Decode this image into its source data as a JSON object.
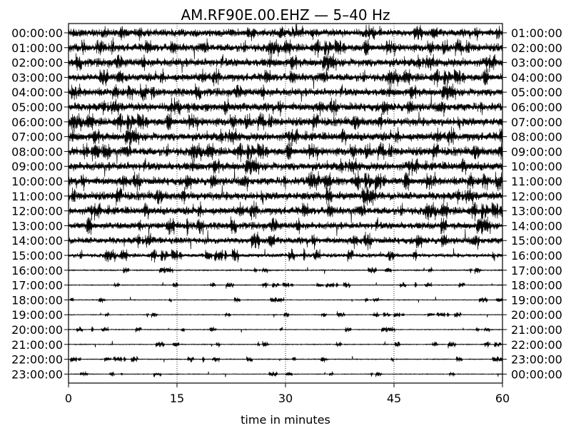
{
  "chart_data": {
    "type": "line",
    "title": "AM.RF90E.00.EHZ — 5–40 Hz",
    "xlabel": "time in minutes",
    "xlim": [
      0,
      60
    ],
    "x_ticks": [
      "0",
      "15",
      "30",
      "45",
      "60"
    ],
    "x_tick_values": [
      0,
      15,
      30,
      45,
      60
    ],
    "grid_vertical_dotted_at": [
      15,
      30,
      45
    ],
    "rows": [
      {
        "left": "00:00:00",
        "right": "01:00:00",
        "amplitude": 0.85,
        "spikiness": 0.35
      },
      {
        "left": "01:00:00",
        "right": "02:00:00",
        "amplitude": 0.95,
        "spikiness": 0.4
      },
      {
        "left": "02:00:00",
        "right": "03:00:00",
        "amplitude": 1.0,
        "spikiness": 0.4
      },
      {
        "left": "03:00:00",
        "right": "04:00:00",
        "amplitude": 0.95,
        "spikiness": 0.4
      },
      {
        "left": "04:00:00",
        "right": "05:00:00",
        "amplitude": 0.95,
        "spikiness": 0.4
      },
      {
        "left": "05:00:00",
        "right": "06:00:00",
        "amplitude": 1.0,
        "spikiness": 0.4
      },
      {
        "left": "06:00:00",
        "right": "07:00:00",
        "amplitude": 1.0,
        "spikiness": 0.4
      },
      {
        "left": "07:00:00",
        "right": "08:00:00",
        "amplitude": 1.0,
        "spikiness": 0.4
      },
      {
        "left": "08:00:00",
        "right": "09:00:00",
        "amplitude": 1.0,
        "spikiness": 0.4
      },
      {
        "left": "09:00:00",
        "right": "10:00:00",
        "amplitude": 1.0,
        "spikiness": 0.4
      },
      {
        "left": "10:00:00",
        "right": "11:00:00",
        "amplitude": 1.05,
        "spikiness": 0.45
      },
      {
        "left": "11:00:00",
        "right": "12:00:00",
        "amplitude": 1.05,
        "spikiness": 0.45
      },
      {
        "left": "12:00:00",
        "right": "13:00:00",
        "amplitude": 1.0,
        "spikiness": 0.45
      },
      {
        "left": "13:00:00",
        "right": "14:00:00",
        "amplitude": 1.0,
        "spikiness": 0.5
      },
      {
        "left": "14:00:00",
        "right": "15:00:00",
        "amplitude": 0.95,
        "spikiness": 0.5
      },
      {
        "left": "15:00:00",
        "right": "16:00:00",
        "amplitude": 0.7,
        "spikiness": 0.6
      },
      {
        "left": "16:00:00",
        "right": "17:00:00",
        "amplitude": 0.35,
        "spikiness": 0.8
      },
      {
        "left": "17:00:00",
        "right": "18:00:00",
        "amplitude": 0.3,
        "spikiness": 0.85
      },
      {
        "left": "18:00:00",
        "right": "19:00:00",
        "amplitude": 0.3,
        "spikiness": 0.85
      },
      {
        "left": "19:00:00",
        "right": "20:00:00",
        "amplitude": 0.28,
        "spikiness": 0.85
      },
      {
        "left": "20:00:00",
        "right": "21:00:00",
        "amplitude": 0.3,
        "spikiness": 0.85
      },
      {
        "left": "21:00:00",
        "right": "22:00:00",
        "amplitude": 0.32,
        "spikiness": 0.85
      },
      {
        "left": "22:00:00",
        "right": "23:00:00",
        "amplitude": 0.32,
        "spikiness": 0.85
      },
      {
        "left": "23:00:00",
        "right": "00:00:00",
        "amplitude": 0.28,
        "spikiness": 0.85
      }
    ]
  }
}
